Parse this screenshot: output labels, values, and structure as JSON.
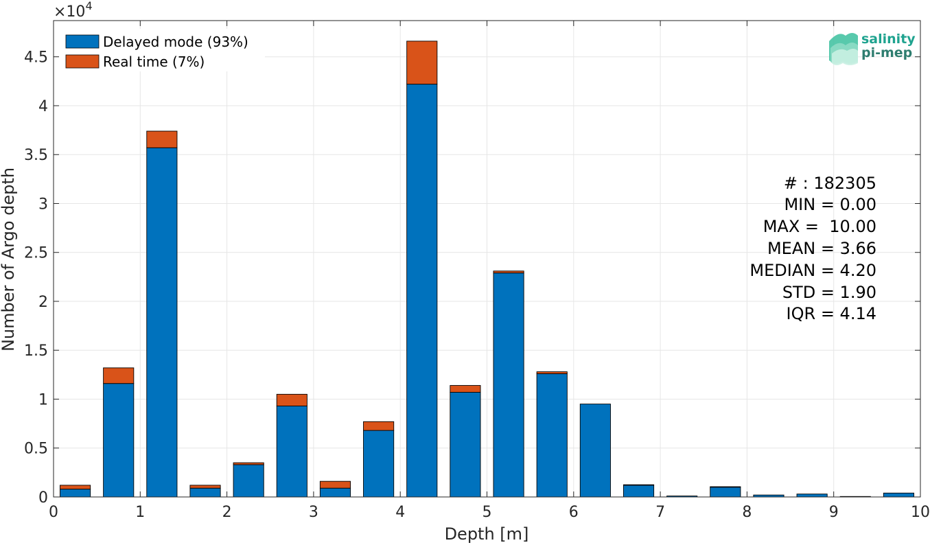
{
  "chart_data": {
    "type": "bar",
    "stacked": true,
    "xlabel": "Depth [m]",
    "ylabel": "Number of Argo depth",
    "y_multiplier_label": "×10",
    "y_multiplier_exponent": "4",
    "xlim": [
      0,
      10
    ],
    "ylim": [
      0,
      4.87
    ],
    "xticks": [
      "0",
      "1",
      "2",
      "3",
      "4",
      "5",
      "6",
      "7",
      "8",
      "9",
      "10"
    ],
    "yticks": [
      "0",
      "0.5",
      "1",
      "1.5",
      "2",
      "2.5",
      "3",
      "3.5",
      "4",
      "4.5"
    ],
    "grid": true,
    "legend_position": "top-left",
    "bin_width": 0.5,
    "bin_centers": [
      0.25,
      0.75,
      1.25,
      1.75,
      2.25,
      2.75,
      3.25,
      3.75,
      4.25,
      4.75,
      5.25,
      5.75,
      6.25,
      6.75,
      7.25,
      7.75,
      8.25,
      8.75,
      9.25,
      9.75
    ],
    "series": [
      {
        "name": "Delayed mode (93%)",
        "color": "#0072bd",
        "values": [
          0.08,
          1.16,
          3.57,
          0.09,
          0.33,
          0.93,
          0.09,
          0.68,
          4.22,
          1.07,
          2.29,
          1.26,
          0.95,
          0.12,
          0.01,
          0.1,
          0.02,
          0.03,
          0.005,
          0.04
        ]
      },
      {
        "name": "Real time (7%)",
        "color": "#d95319",
        "values": [
          0.04,
          0.16,
          0.17,
          0.03,
          0.02,
          0.12,
          0.07,
          0.09,
          0.44,
          0.07,
          0.02,
          0.02,
          0.0,
          0.005,
          0.0,
          0.005,
          0.0,
          0.0,
          0.0,
          0.0
        ]
      }
    ],
    "stats": [
      "# : 182305",
      "MIN = 0.00",
      "MAX =  10.00",
      "MEAN = 3.66",
      "MEDIAN = 4.20",
      "STD = 1.90",
      "IQR = 4.14"
    ]
  },
  "logo": {
    "line1": "salinity",
    "line2": "pi-mep",
    "color1": "#1fa38f",
    "color2": "#2e7d6f"
  }
}
